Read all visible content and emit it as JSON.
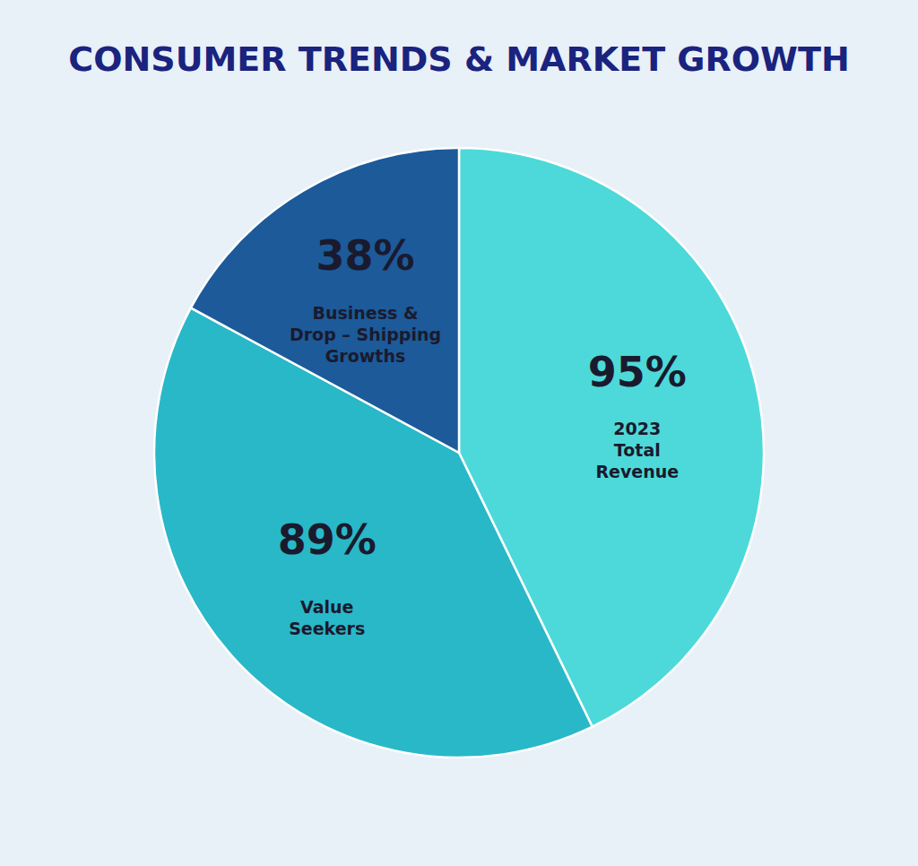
{
  "chart_data": {
    "type": "pie",
    "title": "CONSUMER TRENDS & MARKET GROWTH",
    "categories": [
      "2023\nTotal\nRevenue",
      "Value\nSeekers",
      "Business &\nDrop – Shipping\nGrowths"
    ],
    "values": [
      95,
      89,
      38
    ],
    "value_labels": [
      "95%",
      "89%",
      "38%"
    ],
    "data_labels": true,
    "colors": [
      "#4dd9d9",
      "#29b8c8",
      "#1c5a9a"
    ]
  }
}
